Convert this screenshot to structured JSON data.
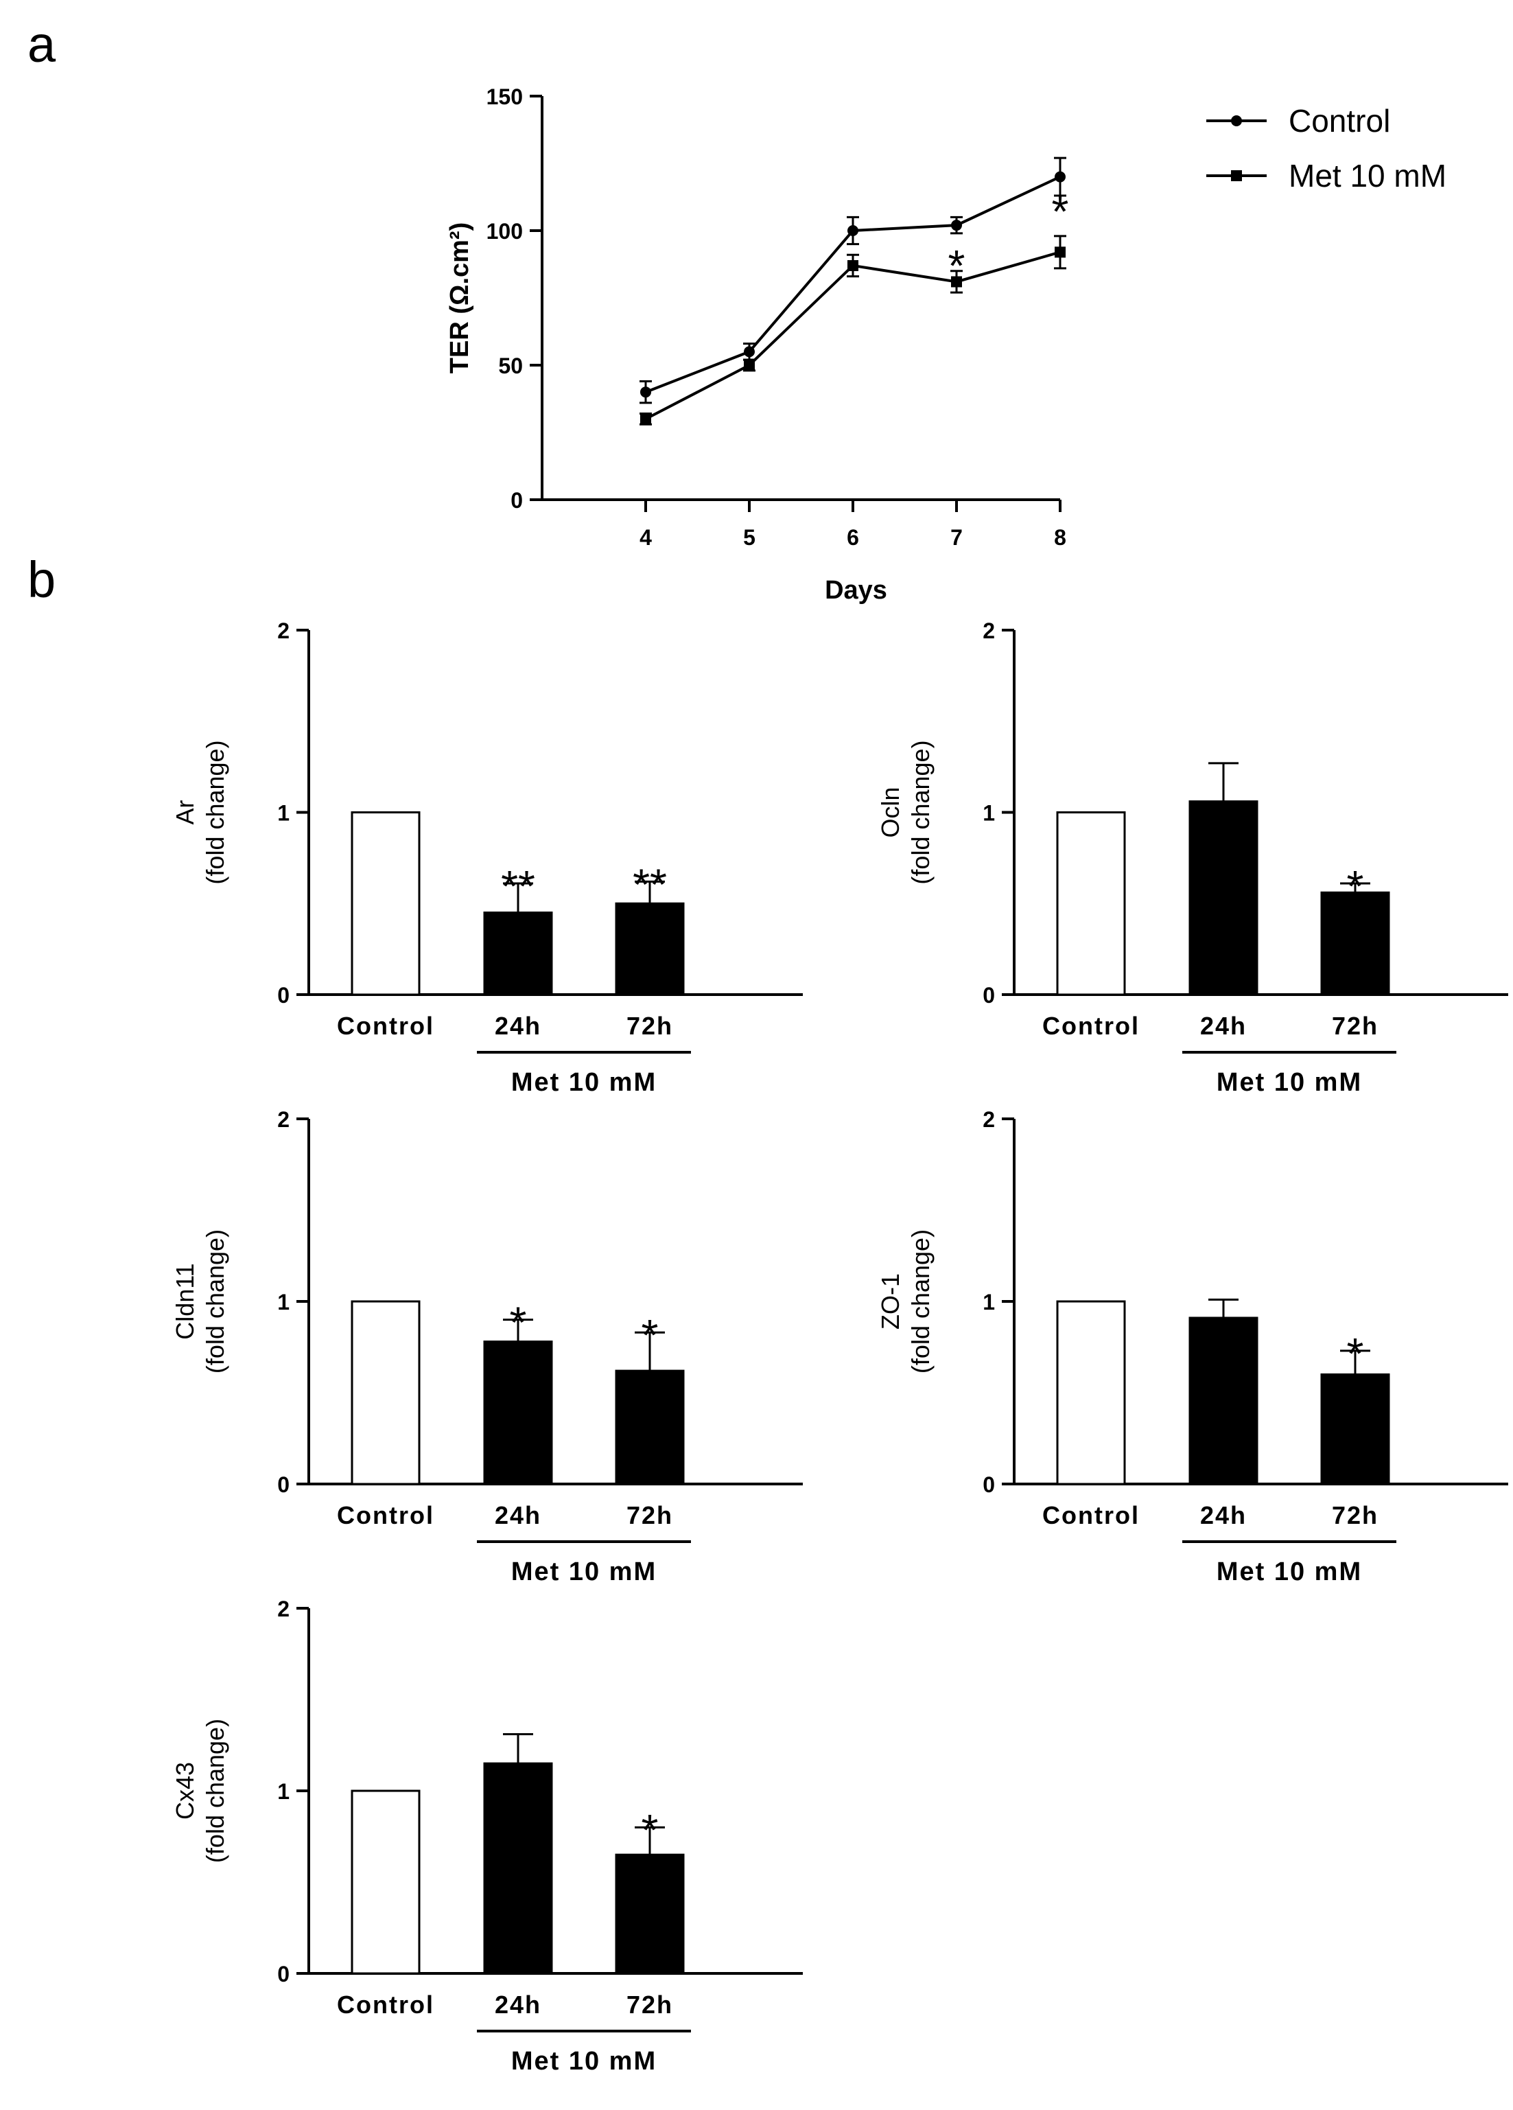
{
  "panel_labels": [
    "a",
    "b"
  ],
  "chart_data": [
    {
      "type": "line",
      "panel": "a",
      "title": "",
      "xlabel": "Days",
      "ylabel": "TER (Ω.cm²)",
      "x": [
        4,
        5,
        6,
        7,
        8
      ],
      "x_tick_labels": [
        "4",
        "5",
        "6",
        "7",
        "8"
      ],
      "ylim": [
        0,
        150
      ],
      "y_ticks": [
        0,
        50,
        100,
        150
      ],
      "y_tick_labels": [
        "0",
        "50",
        "100",
        "150"
      ],
      "legend_position": "top-right",
      "series": [
        {
          "name": "Control",
          "marker": "circle",
          "values": [
            40,
            55,
            100,
            102,
            120
          ],
          "errors": [
            4,
            3,
            5,
            3,
            7
          ],
          "significance": [
            "",
            "",
            "",
            "",
            ""
          ]
        },
        {
          "name": "Met 10 mM",
          "marker": "square",
          "values": [
            30,
            50,
            87,
            81,
            92
          ],
          "errors": [
            2,
            2,
            4,
            4,
            6
          ],
          "significance": [
            "",
            "",
            "",
            "*",
            "*"
          ]
        }
      ]
    },
    {
      "type": "bar",
      "panel": "b",
      "ylabel_line1": "Ar",
      "ylabel_line2": "(fold change)",
      "categories": [
        "Control",
        "24h",
        "72h"
      ],
      "group_label": "Met 10 mM",
      "values": [
        1.0,
        0.45,
        0.5
      ],
      "errors": [
        0,
        0.16,
        0.12
      ],
      "significance": [
        "",
        "**",
        "**"
      ],
      "ylim": [
        0,
        2
      ],
      "y_ticks": [
        0,
        1,
        2
      ],
      "y_tick_labels": [
        "0",
        "1",
        "2"
      ]
    },
    {
      "type": "bar",
      "panel": "b",
      "ylabel_line1": "Ocln",
      "ylabel_line2": "(fold change)",
      "categories": [
        "Control",
        "24h",
        "72h"
      ],
      "group_label": "Met 10 mM",
      "values": [
        1.0,
        1.06,
        0.56
      ],
      "errors": [
        0,
        0.21,
        0.05
      ],
      "significance": [
        "",
        "",
        "*"
      ],
      "ylim": [
        0,
        2
      ],
      "y_ticks": [
        0,
        1,
        2
      ],
      "y_tick_labels": [
        "0",
        "1",
        "2"
      ]
    },
    {
      "type": "bar",
      "panel": "b",
      "ylabel_line1": "Cldn11",
      "ylabel_line2": "(fold change)",
      "categories": [
        "Control",
        "24h",
        "72h"
      ],
      "group_label": "Met 10 mM",
      "values": [
        1.0,
        0.78,
        0.62
      ],
      "errors": [
        0,
        0.12,
        0.21
      ],
      "significance": [
        "",
        "*",
        "*"
      ],
      "ylim": [
        0,
        2
      ],
      "y_ticks": [
        0,
        1,
        2
      ],
      "y_tick_labels": [
        "0",
        "1",
        "2"
      ]
    },
    {
      "type": "bar",
      "panel": "b",
      "ylabel_line1": "ZO-1",
      "ylabel_line2": "(fold change)",
      "categories": [
        "Control",
        "24h",
        "72h"
      ],
      "group_label": "Met 10 mM",
      "values": [
        1.0,
        0.91,
        0.6
      ],
      "errors": [
        0,
        0.1,
        0.13
      ],
      "significance": [
        "",
        "",
        "*"
      ],
      "ylim": [
        0,
        2
      ],
      "y_ticks": [
        0,
        1,
        2
      ],
      "y_tick_labels": [
        "0",
        "1",
        "2"
      ]
    },
    {
      "type": "bar",
      "panel": "b",
      "ylabel_line1": "Cx43",
      "ylabel_line2": "(fold change)",
      "categories": [
        "Control",
        "24h",
        "72h"
      ],
      "group_label": "Met 10 mM",
      "values": [
        1.0,
        1.15,
        0.65
      ],
      "errors": [
        0,
        0.16,
        0.15
      ],
      "significance": [
        "",
        "",
        "*"
      ],
      "ylim": [
        0,
        2
      ],
      "y_ticks": [
        0,
        1,
        2
      ],
      "y_tick_labels": [
        "0",
        "1",
        "2"
      ]
    }
  ]
}
